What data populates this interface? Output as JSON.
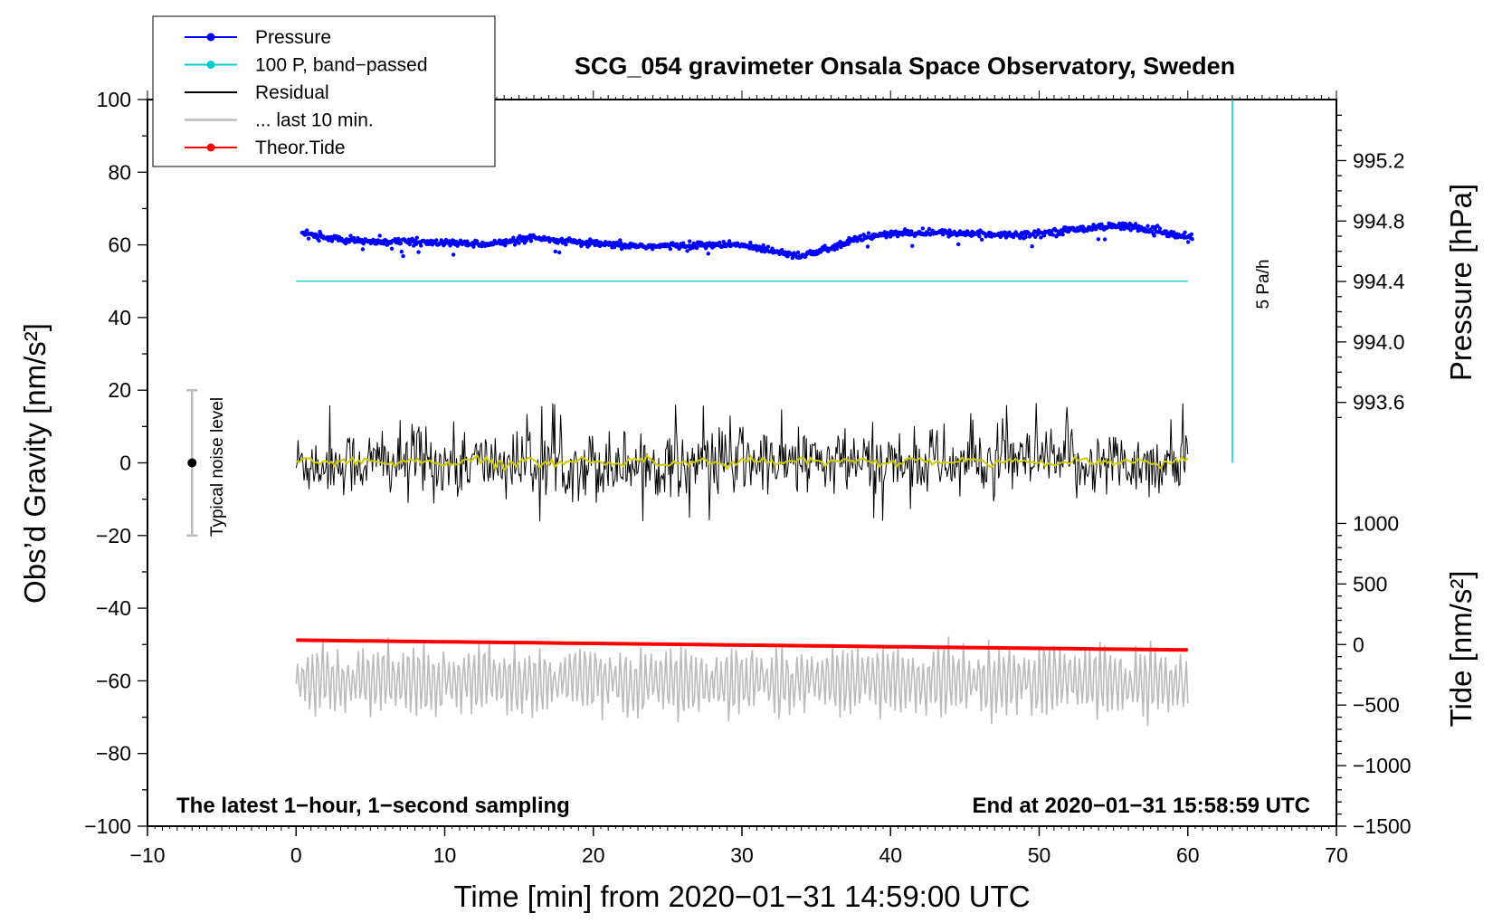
{
  "chart_data": {
    "type": "line",
    "title": "SCG_054 gravimeter Onsala Space Observatory, Sweden",
    "xlabel": "Time [min] from 2020−01−31 14:59:00 UTC",
    "ylabel_left": "Obs’d Gravity [nm/s²]",
    "ylabel_right_top": "Pressure [hPa]",
    "ylabel_right_bottom": "Tide [nm/s²]",
    "xlim": [
      -10,
      70
    ],
    "ylim_left": [
      -100,
      100
    ],
    "x_ticks": [
      "−10",
      "0",
      "10",
      "20",
      "30",
      "40",
      "50",
      "60",
      "70"
    ],
    "x_tick_values": [
      -10,
      0,
      10,
      20,
      30,
      40,
      50,
      60,
      70
    ],
    "y_ticks_left": [
      "100",
      "80",
      "60",
      "40",
      "20",
      "0",
      "−20",
      "−40",
      "−60",
      "−80",
      "−100"
    ],
    "y_tick_values_left": [
      100,
      80,
      60,
      40,
      20,
      0,
      -20,
      -40,
      -60,
      -80,
      -100
    ],
    "pressure_axis": {
      "ticks": [
        "995.2",
        "994.8",
        "994.4",
        "994.0",
        "993.6"
      ],
      "values": [
        995.2,
        994.8,
        994.4,
        994.0,
        993.6
      ],
      "gravity_at_995_2": 83.2,
      "gravity_per_hPa": 41.6
    },
    "tide_axis": {
      "ticks": [
        "1000",
        "500",
        "0",
        "−500",
        "−1000",
        "−1500"
      ],
      "values": [
        1000,
        500,
        0,
        -500,
        -1000,
        -1500
      ],
      "gravity_at_0": -50,
      "gravity_per_unit": 0.03333
    },
    "legend": [
      {
        "label": "Pressure",
        "color": "#0000ff",
        "marker": true
      },
      {
        "label": "100 P, band−passed",
        "color": "#00cccc",
        "marker": true
      },
      {
        "label": "Residual",
        "color": "#000000",
        "marker": false
      },
      {
        "label": "... last 10 min.",
        "color": "#bbbbbb",
        "marker": false
      },
      {
        "label": "Theor.Tide",
        "color": "#ff0000",
        "marker": true
      }
    ],
    "series": [
      {
        "name": "Pressure",
        "color": "#0000ff",
        "x": [
          0,
          2,
          4,
          6,
          8,
          10,
          12,
          14,
          16,
          18,
          20,
          22,
          24,
          26,
          28,
          30,
          32,
          34,
          36,
          38,
          40,
          42,
          44,
          46,
          48,
          50,
          52,
          54,
          56,
          58,
          60
        ],
        "y": [
          63.5,
          62.0,
          61.0,
          61.0,
          60.8,
          60.5,
          60.3,
          60.6,
          61.8,
          61.0,
          60.3,
          59.8,
          59.6,
          59.8,
          60.0,
          59.9,
          58.5,
          57.0,
          59.0,
          62.0,
          63.0,
          63.3,
          63.3,
          63.0,
          62.8,
          63.2,
          64.0,
          65.0,
          65.3,
          63.5,
          62.0
        ]
      },
      {
        "name": "100 P, band−passed",
        "color": "#00cccc",
        "x": [
          0,
          60
        ],
        "y": [
          50,
          50
        ]
      },
      {
        "name": "Residual",
        "color": "#000000",
        "x_range": [
          0,
          60
        ],
        "baseline": 0,
        "amplitude_nm_s2": 16
      },
      {
        "name": "Residual smoothed",
        "color": "#cccc00",
        "x_range": [
          0,
          60
        ],
        "baseline": 0.3
      },
      {
        "name": "... last 10 min.",
        "color": "#bbbbbb",
        "x_range": [
          0,
          60
        ],
        "baseline": -60,
        "amplitude_nm_s2": 13
      },
      {
        "name": "Theor.Tide",
        "color": "#ff0000",
        "x": [
          0,
          60
        ],
        "tide_values": [
          36,
          -45
        ]
      }
    ],
    "pressure_rate_indicator": {
      "label": "5 Pa/h",
      "x": 63,
      "y_range": [
        0,
        100
      ],
      "color": "#00cccc"
    },
    "noise_bar": {
      "label": "Typical noise level",
      "x": -7,
      "y_center": 0,
      "y_half": 20
    },
    "annotations": {
      "left": "The latest 1−hour, 1−second sampling",
      "right": "End at 2020−01−31 15:58:59 UTC"
    }
  }
}
